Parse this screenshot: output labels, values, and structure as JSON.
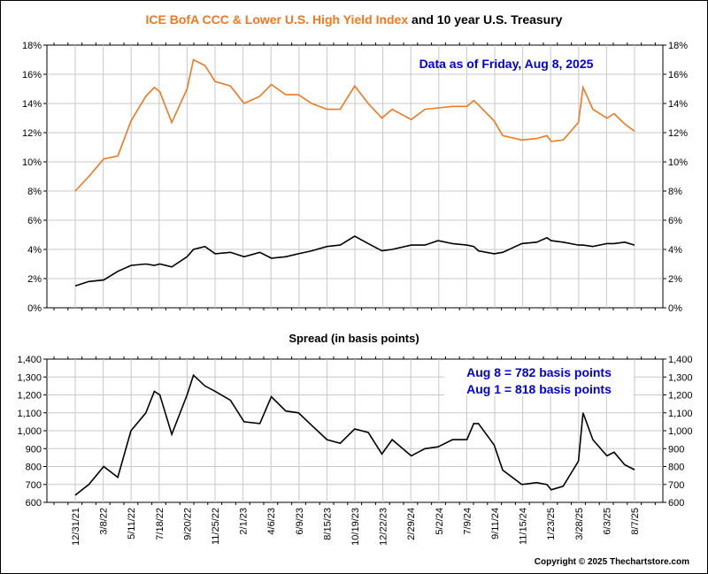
{
  "chart_data": [
    {
      "type": "line",
      "title_parts": [
        {
          "text": "ICE BofA CCC & Lower U.S. High Yield Index",
          "color": "#f07820"
        },
        {
          "text": " and 10 year U.S. Treasury",
          "color": "#000000"
        }
      ],
      "annotation": "Data as of Friday, Aug 8, 2025",
      "annotation_color": "#0000dd",
      "ylim": [
        0,
        18
      ],
      "yticks": [
        "0%",
        "2%",
        "4%",
        "6%",
        "8%",
        "10%",
        "12%",
        "14%",
        "16%",
        "18%"
      ],
      "grid": true,
      "x": [
        "2021-12-31",
        "2022-02-01",
        "2022-03-08",
        "2022-04-10",
        "2022-05-11",
        "2022-06-15",
        "2022-07-05",
        "2022-07-18",
        "2022-08-15",
        "2022-09-20",
        "2022-10-05",
        "2022-11-01",
        "2022-11-25",
        "2022-12-31",
        "2023-02-01",
        "2023-03-10",
        "2023-04-06",
        "2023-05-10",
        "2023-06-09",
        "2023-07-10",
        "2023-08-15",
        "2023-09-15",
        "2023-10-19",
        "2023-11-20",
        "2023-12-22",
        "2024-01-15",
        "2024-02-29",
        "2024-04-01",
        "2024-05-02",
        "2024-06-05",
        "2024-07-09",
        "2024-07-25",
        "2024-08-05",
        "2024-09-11",
        "2024-10-01",
        "2024-11-15",
        "2024-12-20",
        "2025-01-13",
        "2025-01-23",
        "2025-02-20",
        "2025-03-28",
        "2025-04-08",
        "2025-05-01",
        "2025-06-03",
        "2025-06-20",
        "2025-07-15",
        "2025-08-07"
      ],
      "series": [
        {
          "color": "#f07820",
          "values": [
            8.0,
            9.0,
            10.2,
            10.4,
            12.8,
            14.5,
            15.1,
            14.8,
            12.7,
            15.0,
            17.0,
            16.6,
            15.5,
            15.2,
            14.0,
            14.5,
            15.3,
            14.6,
            14.6,
            14.0,
            13.6,
            13.6,
            15.2,
            14.0,
            13.0,
            13.6,
            12.9,
            13.6,
            13.7,
            13.8,
            13.8,
            14.2,
            13.9,
            12.8,
            11.8,
            11.5,
            11.6,
            11.8,
            11.4,
            11.5,
            12.7,
            15.1,
            13.6,
            13.0,
            13.3,
            12.6,
            12.1
          ]
        },
        {
          "color": "#000000",
          "values": [
            1.5,
            1.8,
            1.9,
            2.5,
            2.9,
            3.0,
            2.9,
            3.0,
            2.8,
            3.5,
            4.0,
            4.2,
            3.7,
            3.8,
            3.5,
            3.8,
            3.4,
            3.5,
            3.7,
            3.9,
            4.2,
            4.3,
            4.9,
            4.4,
            3.9,
            4.0,
            4.3,
            4.3,
            4.6,
            4.4,
            4.3,
            4.2,
            3.9,
            3.7,
            3.8,
            4.4,
            4.5,
            4.8,
            4.6,
            4.5,
            4.3,
            4.3,
            4.2,
            4.4,
            4.4,
            4.5,
            4.3
          ]
        }
      ]
    },
    {
      "type": "line",
      "title": "Spread (in basis points)",
      "annotations": [
        "Aug 8 = 782 basis points",
        "Aug 1 = 818 basis points"
      ],
      "annotation_color": "#0000dd",
      "ylim": [
        600,
        1400
      ],
      "yticks": [
        "600",
        "700",
        "800",
        "900",
        "1,000",
        "1,100",
        "1,200",
        "1,300",
        "1,400"
      ],
      "grid": true,
      "xticks": [
        "12/31/21",
        "3/8/22",
        "5/11/22",
        "7/18/22",
        "9/20/22",
        "11/25/22",
        "2/1/23",
        "4/6/23",
        "6/9/23",
        "8/15/23",
        "10/19/23",
        "12/22/23",
        "2/29/24",
        "5/2/24",
        "7/9/24",
        "9/11/24",
        "11/15/24",
        "1/23/25",
        "3/28/25",
        "6/3/25",
        "8/7/25"
      ],
      "series": [
        {
          "color": "#000000",
          "values": [
            640,
            700,
            800,
            740,
            1000,
            1100,
            1220,
            1200,
            980,
            1200,
            1310,
            1250,
            1220,
            1170,
            1050,
            1040,
            1190,
            1110,
            1100,
            1030,
            950,
            930,
            1010,
            990,
            870,
            950,
            860,
            900,
            910,
            950,
            950,
            1040,
            1040,
            920,
            780,
            700,
            710,
            700,
            670,
            690,
            830,
            1100,
            950,
            860,
            880,
            810,
            782
          ]
        }
      ]
    }
  ],
  "copyright": "Copyright © 2025 Thechartstore.com"
}
